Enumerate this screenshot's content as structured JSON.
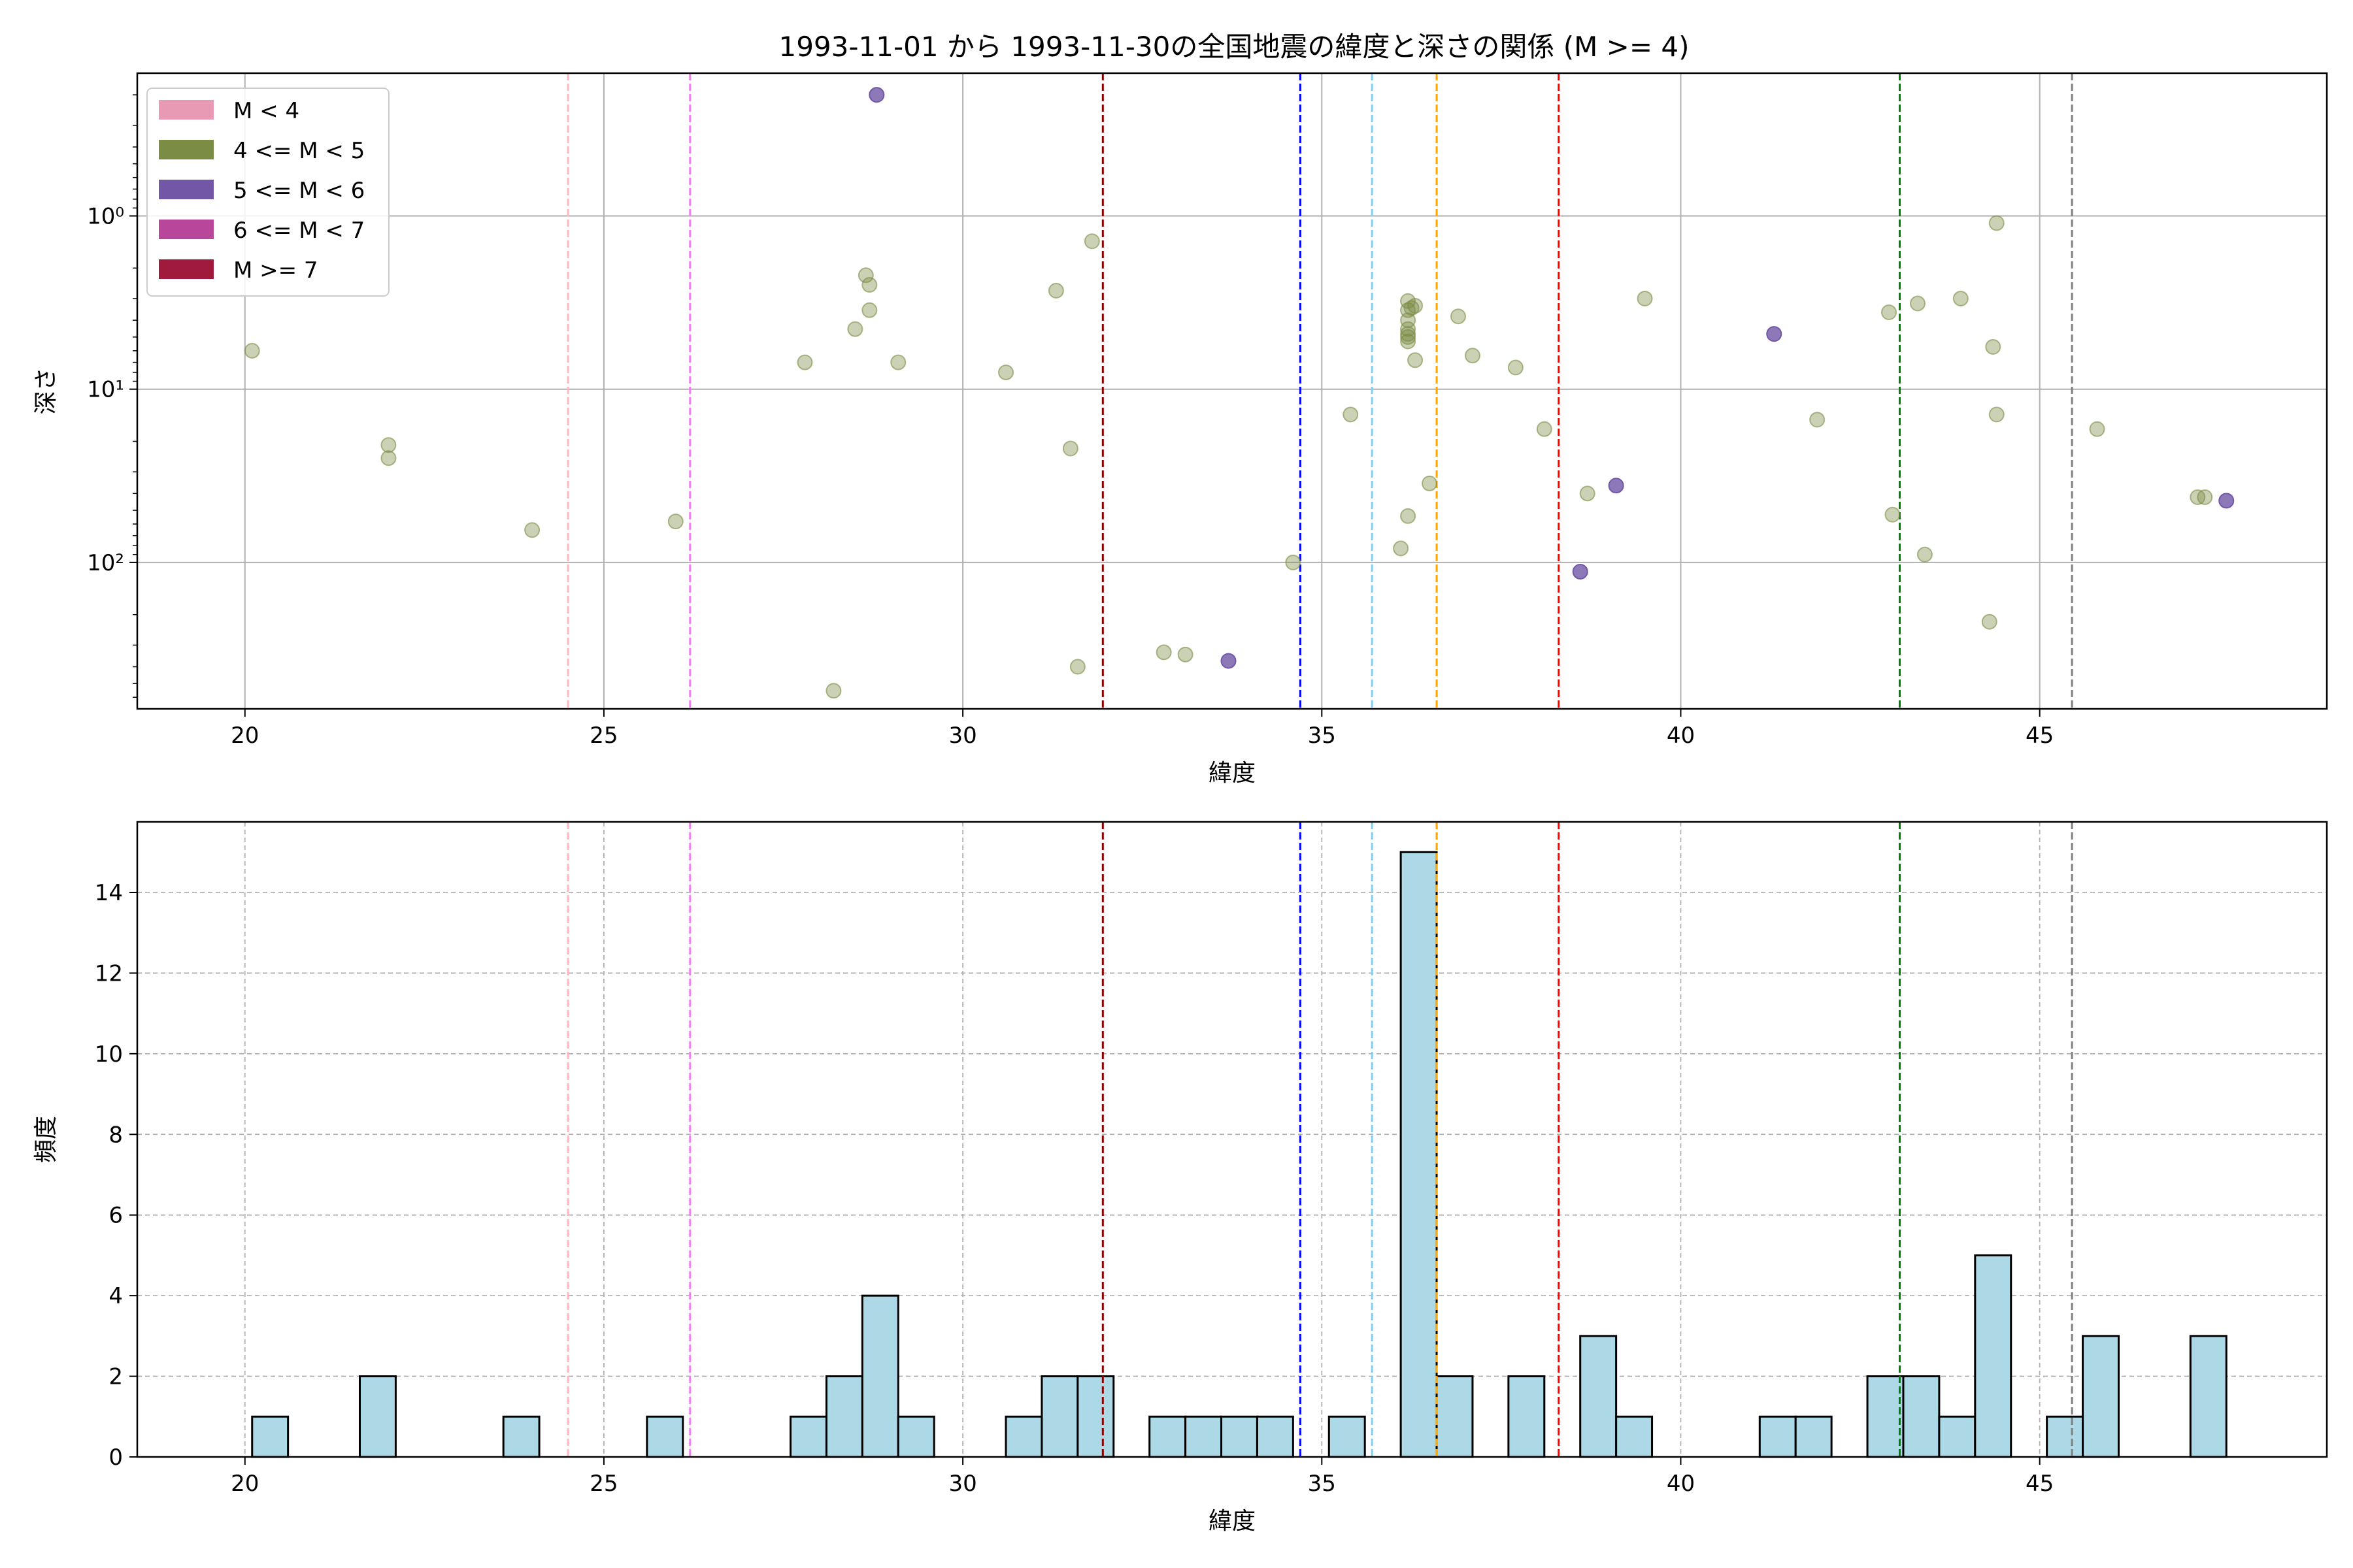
{
  "chart_data": [
    {
      "type": "scatter",
      "title": "1993-11-01 から 1993-11-30の全国地震の緯度と深さの関係 (M >= 4)",
      "xlabel": "緯度",
      "ylabel": "深さ",
      "xlim": [
        18.5,
        49.0
      ],
      "ylim": [
        700,
        0.15
      ],
      "yscale": "log",
      "y_inverted": true,
      "grid": true,
      "legend_placement": "top-left",
      "x_ticks": [
        20,
        25,
        30,
        35,
        40,
        45
      ],
      "x_tick_labels": [
        "20",
        "25",
        "30",
        "35",
        "40",
        "45"
      ],
      "y_ticks": [
        1,
        10,
        100
      ],
      "y_tick_labels": [
        "10⁰",
        "10¹",
        "10²"
      ],
      "legend": [
        {
          "label": "M < 4",
          "color": "#e899b3"
        },
        {
          "label": "4 <= M < 5",
          "color": "#7b8c45"
        },
        {
          "label": "5 <= M < 6",
          "color": "#7157a6"
        },
        {
          "label": "6 <= M < 7",
          "color": "#b8479b"
        },
        {
          "label": "M >= 7",
          "color": "#a01a3e"
        }
      ],
      "series": [
        {
          "name": "4 <= M < 5",
          "color": "#7b8c45",
          "alpha": 0.4,
          "points": [
            {
              "x": 20.1,
              "y": 6
            },
            {
              "x": 22.0,
              "y": 21
            },
            {
              "x": 22.0,
              "y": 25
            },
            {
              "x": 24.0,
              "y": 65
            },
            {
              "x": 26.0,
              "y": 58
            },
            {
              "x": 27.8,
              "y": 7
            },
            {
              "x": 28.2,
              "y": 550
            },
            {
              "x": 28.5,
              "y": 4.5
            },
            {
              "x": 28.65,
              "y": 2.2
            },
            {
              "x": 28.7,
              "y": 2.5
            },
            {
              "x": 28.7,
              "y": 3.5
            },
            {
              "x": 29.1,
              "y": 7
            },
            {
              "x": 30.6,
              "y": 8
            },
            {
              "x": 31.3,
              "y": 2.7
            },
            {
              "x": 31.5,
              "y": 22
            },
            {
              "x": 31.6,
              "y": 400
            },
            {
              "x": 31.8,
              "y": 1.4
            },
            {
              "x": 32.8,
              "y": 330
            },
            {
              "x": 33.1,
              "y": 340
            },
            {
              "x": 34.6,
              "y": 100
            },
            {
              "x": 35.4,
              "y": 14
            },
            {
              "x": 36.1,
              "y": 83
            },
            {
              "x": 36.2,
              "y": 54
            },
            {
              "x": 36.2,
              "y": 3.1
            },
            {
              "x": 36.2,
              "y": 3.5
            },
            {
              "x": 36.2,
              "y": 4.0
            },
            {
              "x": 36.2,
              "y": 4.5
            },
            {
              "x": 36.2,
              "y": 4.8
            },
            {
              "x": 36.2,
              "y": 5.0
            },
            {
              "x": 36.2,
              "y": 5.3
            },
            {
              "x": 36.25,
              "y": 3.4
            },
            {
              "x": 36.3,
              "y": 3.3
            },
            {
              "x": 36.3,
              "y": 6.8
            },
            {
              "x": 36.5,
              "y": 35
            },
            {
              "x": 36.9,
              "y": 3.8
            },
            {
              "x": 37.1,
              "y": 6.4
            },
            {
              "x": 37.7,
              "y": 7.5
            },
            {
              "x": 38.1,
              "y": 17
            },
            {
              "x": 38.7,
              "y": 40
            },
            {
              "x": 39.5,
              "y": 3.0
            },
            {
              "x": 41.9,
              "y": 15
            },
            {
              "x": 42.9,
              "y": 3.6
            },
            {
              "x": 42.95,
              "y": 53
            },
            {
              "x": 43.3,
              "y": 3.2
            },
            {
              "x": 43.4,
              "y": 90
            },
            {
              "x": 43.9,
              "y": 3.0
            },
            {
              "x": 44.3,
              "y": 220
            },
            {
              "x": 44.35,
              "y": 5.7
            },
            {
              "x": 44.4,
              "y": 14
            },
            {
              "x": 44.4,
              "y": 1.1
            },
            {
              "x": 45.8,
              "y": 17
            },
            {
              "x": 47.2,
              "y": 42
            },
            {
              "x": 47.3,
              "y": 42
            }
          ]
        },
        {
          "name": "5 <= M < 6",
          "color": "#7157a6",
          "alpha": 0.8,
          "points": [
            {
              "x": 28.8,
              "y": 0.2
            },
            {
              "x": 33.7,
              "y": 370
            },
            {
              "x": 38.6,
              "y": 113
            },
            {
              "x": 39.1,
              "y": 36
            },
            {
              "x": 41.3,
              "y": 4.8
            },
            {
              "x": 47.6,
              "y": 44
            }
          ]
        }
      ],
      "vertical_lines": [
        {
          "x": 24.5,
          "color": "#ffb6c1"
        },
        {
          "x": 26.2,
          "color": "#ee82ee"
        },
        {
          "x": 31.95,
          "color": "#8b0000"
        },
        {
          "x": 34.7,
          "color": "#0000ff"
        },
        {
          "x": 35.7,
          "color": "#87ceeb"
        },
        {
          "x": 36.6,
          "color": "#ffa500"
        },
        {
          "x": 38.3,
          "color": "#ff0000"
        },
        {
          "x": 43.05,
          "color": "#008000"
        },
        {
          "x": 45.45,
          "color": "#808080"
        }
      ]
    },
    {
      "type": "bar",
      "xlabel": "緯度",
      "ylabel": "頻度",
      "xlim": [
        18.5,
        49.0
      ],
      "ylim": [
        0,
        15.75
      ],
      "grid": true,
      "x_ticks": [
        20,
        25,
        30,
        35,
        40,
        45
      ],
      "x_tick_labels": [
        "20",
        "25",
        "30",
        "35",
        "40",
        "45"
      ],
      "y_ticks": [
        0,
        2,
        4,
        6,
        8,
        10,
        12,
        14
      ],
      "y_tick_labels": [
        "0",
        "2",
        "4",
        "6",
        "8",
        "10",
        "12",
        "14"
      ],
      "bar_color": "#add8e6",
      "bin_start": 20.1,
      "bin_width": 0.5,
      "bins": [
        {
          "x": 20.1,
          "count": 1
        },
        {
          "x": 21.6,
          "count": 2
        },
        {
          "x": 23.6,
          "count": 1
        },
        {
          "x": 25.6,
          "count": 1
        },
        {
          "x": 27.6,
          "count": 1
        },
        {
          "x": 28.1,
          "count": 2
        },
        {
          "x": 28.6,
          "count": 4
        },
        {
          "x": 29.1,
          "count": 1
        },
        {
          "x": 30.6,
          "count": 1
        },
        {
          "x": 31.1,
          "count": 2
        },
        {
          "x": 31.6,
          "count": 2
        },
        {
          "x": 32.6,
          "count": 1
        },
        {
          "x": 33.1,
          "count": 1
        },
        {
          "x": 33.6,
          "count": 1
        },
        {
          "x": 34.1,
          "count": 1
        },
        {
          "x": 35.1,
          "count": 1
        },
        {
          "x": 36.1,
          "count": 15
        },
        {
          "x": 36.6,
          "count": 2
        },
        {
          "x": 37.6,
          "count": 2
        },
        {
          "x": 38.6,
          "count": 3
        },
        {
          "x": 39.1,
          "count": 1
        },
        {
          "x": 41.1,
          "count": 1
        },
        {
          "x": 41.6,
          "count": 1
        },
        {
          "x": 42.6,
          "count": 2
        },
        {
          "x": 43.1,
          "count": 2
        },
        {
          "x": 43.6,
          "count": 1
        },
        {
          "x": 44.1,
          "count": 5
        },
        {
          "x": 45.1,
          "count": 1
        },
        {
          "x": 45.6,
          "count": 3
        },
        {
          "x": 47.1,
          "count": 3
        }
      ],
      "vertical_lines": [
        {
          "x": 24.5,
          "color": "#ffb6c1"
        },
        {
          "x": 26.2,
          "color": "#ee82ee"
        },
        {
          "x": 31.95,
          "color": "#8b0000"
        },
        {
          "x": 34.7,
          "color": "#0000ff"
        },
        {
          "x": 35.7,
          "color": "#87ceeb"
        },
        {
          "x": 36.6,
          "color": "#ffa500"
        },
        {
          "x": 38.3,
          "color": "#ff0000"
        },
        {
          "x": 43.05,
          "color": "#008000"
        },
        {
          "x": 45.45,
          "color": "#808080"
        }
      ]
    }
  ]
}
